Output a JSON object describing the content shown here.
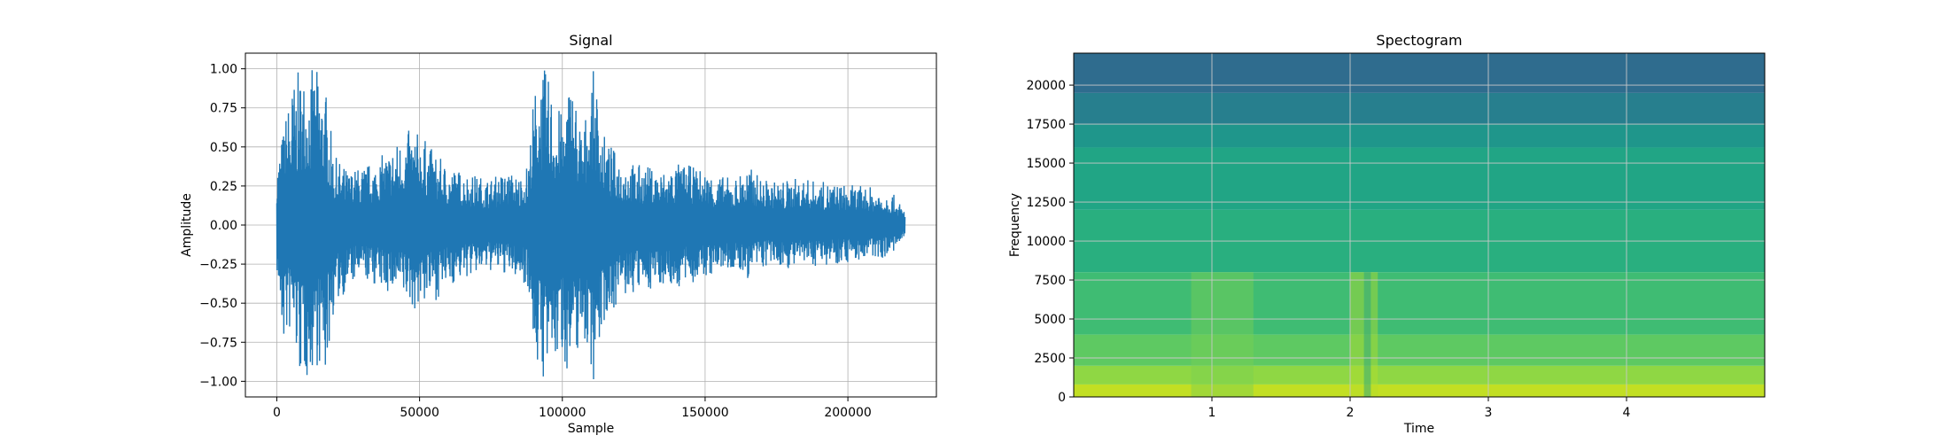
{
  "chart_data": [
    {
      "type": "line",
      "title": "Signal",
      "xlabel": "Sample",
      "ylabel": "Amplitude",
      "xlim": [
        -11000,
        231000
      ],
      "ylim": [
        -1.1,
        1.1
      ],
      "xticks": [
        0,
        50000,
        100000,
        150000,
        200000
      ],
      "xtick_labels": [
        "0",
        "50000",
        "100000",
        "150000",
        "200000"
      ],
      "yticks": [
        -1.0,
        -0.75,
        -0.5,
        -0.25,
        0.0,
        0.25,
        0.5,
        0.75,
        1.0
      ],
      "ytick_labels": [
        "−1.00",
        "−0.75",
        "−0.50",
        "−0.25",
        "0.00",
        "0.25",
        "0.50",
        "0.75",
        "1.00"
      ],
      "grid": true,
      "color": "#1f77b4",
      "series": [
        {
          "x": [
            0,
            2000,
            5000,
            8000,
            11000,
            14000,
            17000,
            20000,
            25000,
            30000,
            35000,
            40000,
            45000,
            48000,
            52000,
            56000,
            60000,
            65000,
            70000,
            75000,
            80000,
            85000,
            88000,
            90000,
            92000,
            94000,
            96000,
            98000,
            100000,
            103000,
            107000,
            111000,
            115000,
            120000,
            125000,
            130000,
            135000,
            140000,
            145000,
            150000,
            155000,
            160000,
            165000,
            170000,
            175000,
            180000,
            185000,
            190000,
            195000,
            200000,
            205000,
            210000,
            215000,
            220000
          ],
          "upper": [
            0.4,
            0.6,
            0.9,
            1.0,
            1.0,
            1.0,
            0.9,
            0.45,
            0.35,
            0.38,
            0.42,
            0.5,
            0.6,
            0.62,
            0.55,
            0.45,
            0.38,
            0.35,
            0.32,
            0.3,
            0.35,
            0.32,
            0.4,
            0.85,
            1.0,
            1.0,
            0.9,
            0.8,
            0.7,
            1.0,
            0.6,
            1.0,
            0.55,
            0.45,
            0.4,
            0.38,
            0.35,
            0.4,
            0.38,
            0.35,
            0.32,
            0.3,
            0.38,
            0.3,
            0.28,
            0.3,
            0.3,
            0.28,
            0.27,
            0.26,
            0.25,
            0.24,
            0.22,
            0.1
          ],
          "lower": [
            -0.3,
            -0.8,
            -0.7,
            -1.0,
            -1.0,
            -0.9,
            -1.0,
            -0.55,
            -0.4,
            -0.35,
            -0.4,
            -0.45,
            -0.5,
            -0.55,
            -0.5,
            -0.48,
            -0.4,
            -0.35,
            -0.32,
            -0.3,
            -0.32,
            -0.35,
            -0.4,
            -0.8,
            -1.0,
            -1.0,
            -0.95,
            -0.9,
            -0.85,
            -1.0,
            -0.7,
            -1.0,
            -0.6,
            -0.5,
            -0.45,
            -0.42,
            -0.38,
            -0.42,
            -0.38,
            -0.35,
            -0.3,
            -0.3,
            -0.35,
            -0.28,
            -0.27,
            -0.28,
            -0.27,
            -0.26,
            -0.25,
            -0.24,
            -0.23,
            -0.22,
            -0.2,
            -0.1
          ]
        }
      ]
    },
    {
      "type": "heatmap",
      "title": "Spectogram",
      "xlabel": "Time",
      "ylabel": "Frequency",
      "xlim": [
        0,
        5
      ],
      "ylim": [
        0,
        22050
      ],
      "xticks": [
        1,
        2,
        3,
        4
      ],
      "xtick_labels": [
        "1",
        "2",
        "3",
        "4"
      ],
      "yticks": [
        0,
        2500,
        5000,
        7500,
        10000,
        12500,
        15000,
        17500,
        20000
      ],
      "ytick_labels": [
        "0",
        "2500",
        "5000",
        "7500",
        "10000",
        "12500",
        "15000",
        "17500",
        "20000"
      ],
      "grid": true,
      "colormap": "viridis",
      "frequency_bands": [
        {
          "from": 0,
          "to": 800,
          "color": "#c2df23"
        },
        {
          "from": 800,
          "to": 2000,
          "color": "#8fd744"
        },
        {
          "from": 2000,
          "to": 4000,
          "color": "#5ec962"
        },
        {
          "from": 4000,
          "to": 8000,
          "color": "#3fbc73"
        },
        {
          "from": 8000,
          "to": 12000,
          "color": "#29af7f"
        },
        {
          "from": 12000,
          "to": 16000,
          "color": "#21a585"
        },
        {
          "from": 16000,
          "to": 17500,
          "color": "#1f968b"
        },
        {
          "from": 17500,
          "to": 19500,
          "color": "#277f8e"
        },
        {
          "from": 19500,
          "to": 22050,
          "color": "#2f6c8e"
        }
      ],
      "time_events": [
        {
          "from": 0.85,
          "to": 1.3,
          "color": "#7ad151"
        },
        {
          "from": 2.0,
          "to": 2.2,
          "color": "#b5de2b"
        },
        {
          "from": 2.1,
          "to": 2.15,
          "color": "#1fa187"
        }
      ]
    }
  ]
}
